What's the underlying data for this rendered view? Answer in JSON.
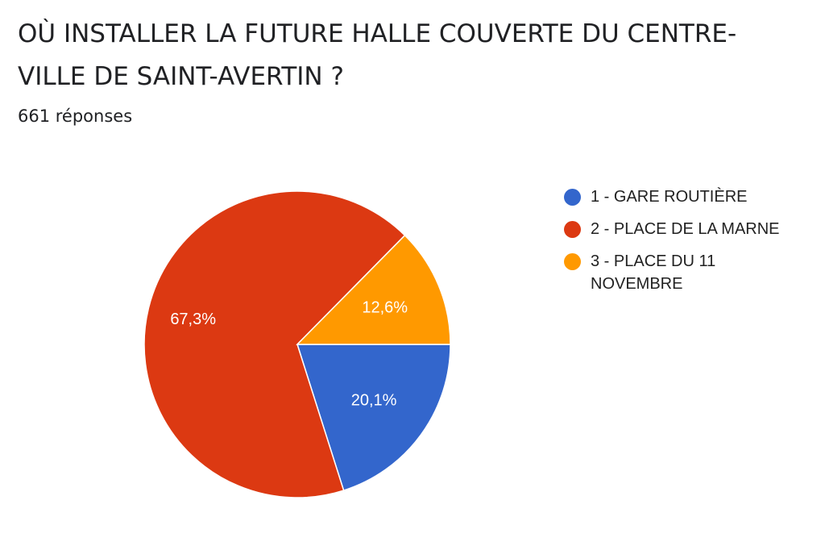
{
  "header": {
    "title": "OÙ INSTALLER LA FUTURE HALLE COUVERTE DU CENTRE-VILLE DE SAINT-AVERTIN ?",
    "responses": "661 réponses"
  },
  "chart_data": {
    "type": "pie",
    "title": "OÙ INSTALLER LA FUTURE HALLE COUVERTE DU CENTRE-VILLE DE SAINT-AVERTIN ?",
    "subtitle": "661 réponses",
    "categories": [
      "1 - GARE ROUTIÈRE",
      "2 - PLACE DE LA MARNE",
      "3 - PLACE DU 11 NOVEMBRE"
    ],
    "values": [
      20.1,
      67.3,
      12.6
    ],
    "labels": [
      "20,1%",
      "67,3%",
      "12,6%"
    ],
    "colors": [
      "#3366cc",
      "#dc3912",
      "#ff9900"
    ],
    "legend_position": "right",
    "start": "3 o'clock",
    "direction": "clockwise"
  }
}
